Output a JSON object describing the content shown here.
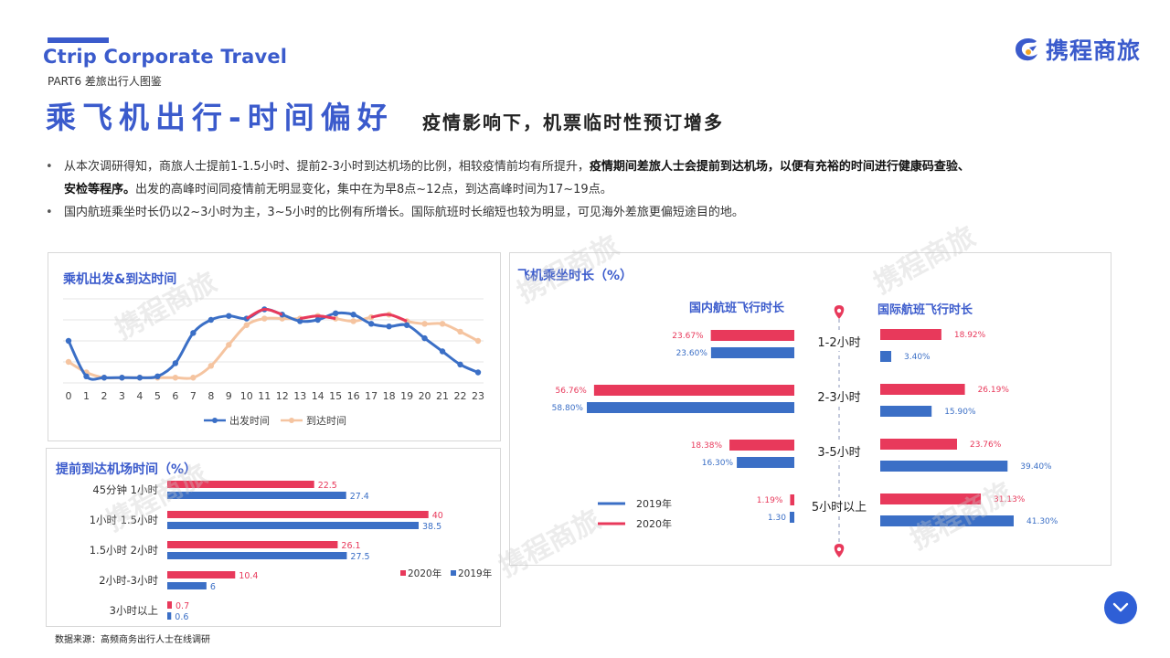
{
  "header": {
    "brand": "Ctrip Corporate Travel",
    "part": "PART6 差旅出行人图鉴",
    "title": "乘飞机出行-时间偏好",
    "subtitle": "疫情影响下，机票临时性预订增多",
    "logo_text": "携程商旅"
  },
  "bullets": {
    "b1_plain": "从本次调研得知，商旅人士提前1-1.5小时、提前2-3小时到达机场的比例，相较疫情前均有所提升，",
    "b1_bold": "疫情期间差旅人士会提前到达机场，以便有充裕的时间进行健康码查验、",
    "b1_bold2": "安检等程序。",
    "b1_tail": "出发的高峰时间同疫情前无明显变化，集中在为早8点~12点，到达高峰时间为17~19点。",
    "b2": "国内航班乘坐时长仍以2~3小时为主，3~5小时的比例有所增长。国际航班时长缩短也较为明显，可见海外差旅更偏短途目的地。"
  },
  "source": "数据来源：高频商务出行人士在线调研",
  "watermark": "携程商旅",
  "colors": {
    "blue": "#3b6fc6",
    "red": "#e8395b",
    "peach": "#f5c4a0",
    "accent": "#3b5bcc"
  },
  "chart_data": [
    {
      "type": "line",
      "title": "乘机出发&到达时间",
      "x": [
        0,
        1,
        2,
        3,
        4,
        5,
        6,
        7,
        8,
        9,
        10,
        11,
        12,
        13,
        14,
        15,
        16,
        17,
        18,
        19,
        20,
        21,
        22,
        23
      ],
      "series": [
        {
          "name": "出发时间",
          "values": [
            16,
            2.5,
            2,
            2,
            2,
            2.5,
            7.5,
            19,
            24,
            25.5,
            24.5,
            28,
            26,
            23.5,
            24,
            26.5,
            26,
            22.5,
            21.5,
            22,
            17,
            12,
            7,
            4
          ]
        },
        {
          "name": "到达时间",
          "values": [
            8,
            4,
            2,
            2,
            2,
            2,
            2,
            2,
            6.5,
            14.5,
            22,
            24.5,
            24.5,
            24.5,
            25.5,
            24.5,
            23.5,
            25,
            26,
            23.5,
            22.5,
            22.5,
            19.5,
            16
          ]
        }
      ],
      "ylim": [
        0,
        32
      ],
      "grid": true,
      "legend": "bottom"
    },
    {
      "type": "bar",
      "title": "提前到达机场时间（%）",
      "categories": [
        "45分钟 1小时",
        "1小时 1.5小时",
        "1.5小时 2小时",
        "2小时-3小时",
        "3小时以上"
      ],
      "series": [
        {
          "name": "2020年",
          "values": [
            22.5,
            40,
            26.1,
            10.4,
            0.7
          ]
        },
        {
          "name": "2019年",
          "values": [
            27.4,
            38.5,
            27.5,
            6,
            0.6
          ]
        }
      ],
      "xlim": [
        0,
        42
      ],
      "legend": "bottom-right"
    },
    {
      "type": "bar",
      "title": "飞机乘坐时长（%）",
      "left_label": "国内航班飞行时长",
      "right_label": "国际航班飞行时长",
      "categories": [
        "1-2小时",
        "2-3小时",
        "3-5小时",
        "5小时以上"
      ],
      "domestic": {
        "2020": [
          23.67,
          56.76,
          18.38,
          1.19
        ],
        "2019": [
          23.6,
          58.8,
          16.3,
          1.3
        ],
        "labels_2020": [
          "23.67%",
          "56.76%",
          "18.38%",
          "1.19%"
        ],
        "labels_2019": [
          "23.60%",
          "58.80%",
          "16.30%",
          "1.30"
        ]
      },
      "international": {
        "2020": [
          18.92,
          26.19,
          23.76,
          31.13
        ],
        "2019": [
          3.4,
          15.9,
          39.4,
          41.3
        ],
        "labels_2020": [
          "18.92%",
          "26.19%",
          "23.76%",
          "31.13%"
        ],
        "labels_2019": [
          "3.40%",
          "15.90%",
          "39.40%",
          "41.30%"
        ]
      },
      "legend": [
        "2019年",
        "2020年"
      ]
    }
  ]
}
